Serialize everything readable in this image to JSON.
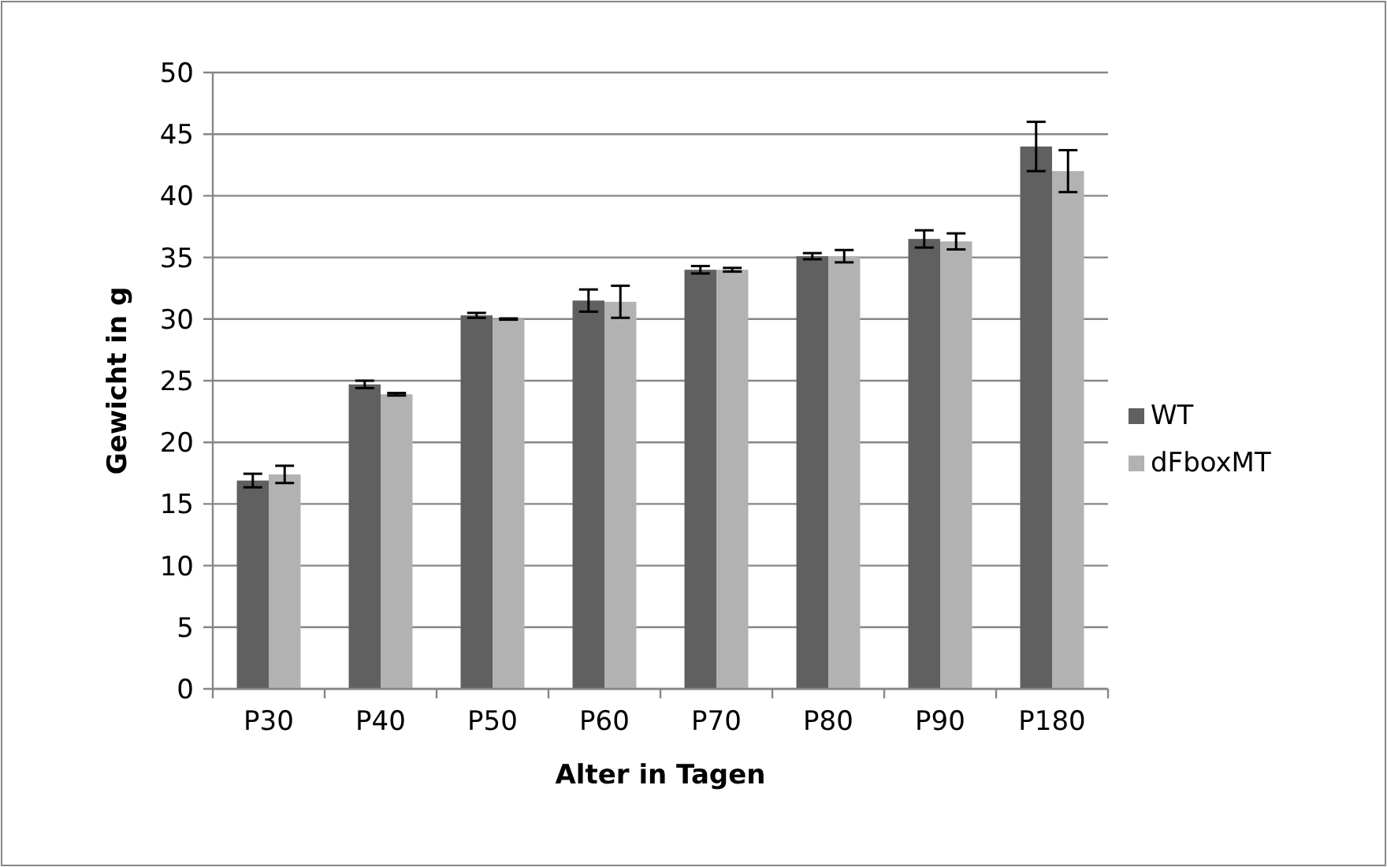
{
  "chart_data": {
    "type": "bar",
    "xlabel": "Alter in Tagen",
    "ylabel": "Gewicht in g",
    "categories": [
      "P30",
      "P40",
      "P50",
      "P60",
      "P70",
      "P80",
      "P90",
      "P180"
    ],
    "series": [
      {
        "name": "WT",
        "color": "#606060",
        "values": [
          16.9,
          24.7,
          30.3,
          31.5,
          34.0,
          35.1,
          36.5,
          44.0
        ],
        "errors": [
          0.55,
          0.3,
          0.2,
          0.9,
          0.3,
          0.25,
          0.7,
          2.0
        ]
      },
      {
        "name": "dFboxMT",
        "color": "#b2b2b2",
        "values": [
          17.4,
          23.9,
          30.0,
          31.4,
          34.0,
          35.1,
          36.3,
          42.0
        ],
        "errors": [
          0.7,
          0.1,
          0.05,
          1.3,
          0.15,
          0.5,
          0.65,
          1.7
        ]
      }
    ],
    "ylim": [
      0,
      50
    ],
    "yticks": [
      0,
      5,
      10,
      15,
      20,
      25,
      30,
      35,
      40,
      45,
      50
    ],
    "grid": "y",
    "legend": "right"
  }
}
